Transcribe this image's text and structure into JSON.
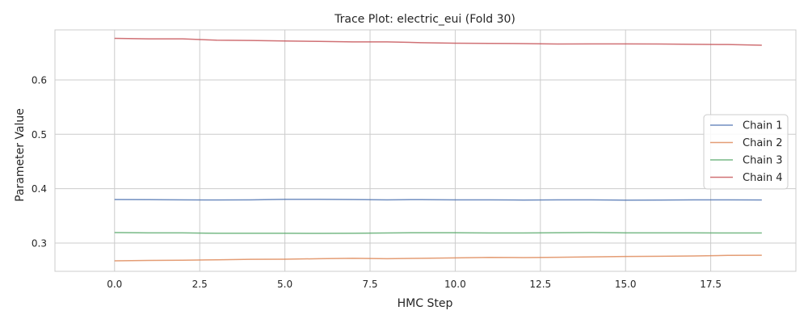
{
  "chart_data": {
    "type": "line",
    "title": "Trace Plot: electric_eui (Fold 30)",
    "xlabel": "HMC Step",
    "ylabel": "Parameter Value",
    "xlim": [
      -1.75,
      20.0
    ],
    "ylim": [
      0.248,
      0.692
    ],
    "xticks": [
      0.0,
      2.5,
      5.0,
      7.5,
      10.0,
      12.5,
      15.0,
      17.5
    ],
    "xtick_labels": [
      "0.0",
      "2.5",
      "5.0",
      "7.5",
      "10.0",
      "12.5",
      "15.0",
      "17.5"
    ],
    "yticks": [
      0.3,
      0.4,
      0.5,
      0.6
    ],
    "ytick_labels": [
      "0.3",
      "0.4",
      "0.5",
      "0.6"
    ],
    "grid": true,
    "legend_position": "center-right",
    "x": [
      0,
      1,
      2,
      3,
      4,
      5,
      6,
      7,
      8,
      9,
      10,
      11,
      12,
      13,
      14,
      15,
      16,
      17,
      18,
      19
    ],
    "series": [
      {
        "name": "Chain 1",
        "color": "#4c72b0",
        "values": [
          0.38,
          0.3797,
          0.3795,
          0.3792,
          0.3795,
          0.3803,
          0.3803,
          0.38,
          0.3795,
          0.3798,
          0.3795,
          0.3795,
          0.379,
          0.3795,
          0.3795,
          0.3788,
          0.379,
          0.3795,
          0.3795,
          0.3792
        ]
      },
      {
        "name": "Chain 2",
        "color": "#dd8452",
        "values": [
          0.2673,
          0.268,
          0.2685,
          0.2692,
          0.27,
          0.2703,
          0.2712,
          0.272,
          0.2712,
          0.272,
          0.2726,
          0.2737,
          0.2733,
          0.2738,
          0.2746,
          0.2753,
          0.2757,
          0.2763,
          0.2773,
          0.2775
        ]
      },
      {
        "name": "Chain 3",
        "color": "#55a868",
        "values": [
          0.3192,
          0.3187,
          0.3187,
          0.318,
          0.318,
          0.318,
          0.3177,
          0.318,
          0.3185,
          0.319,
          0.319,
          0.3185,
          0.3185,
          0.319,
          0.3192,
          0.3187,
          0.3187,
          0.3187,
          0.3185,
          0.3185
        ]
      },
      {
        "name": "Chain 4",
        "color": "#c44e52",
        "values": [
          0.6765,
          0.6755,
          0.6755,
          0.673,
          0.6725,
          0.6715,
          0.6708,
          0.67,
          0.67,
          0.6685,
          0.6675,
          0.6672,
          0.6668,
          0.666,
          0.6662,
          0.6662,
          0.666,
          0.6655,
          0.665,
          0.6637
        ]
      }
    ]
  }
}
